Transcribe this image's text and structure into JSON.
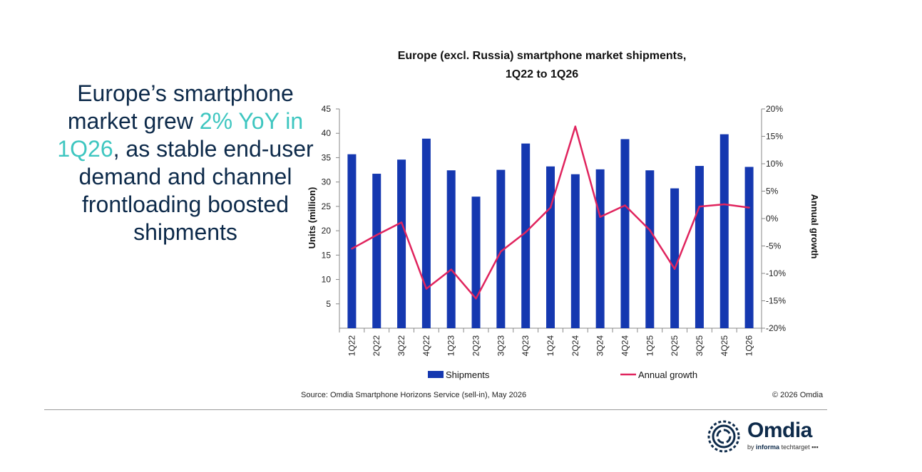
{
  "headline": {
    "part1": "Europe’s smartphone market grew ",
    "highlight": "2% YoY in 1Q26",
    "part2": ", as stable end-user demand and channel frontloading boosted shipments"
  },
  "chart_data": {
    "type": "bar",
    "title_line1": "Europe (excl. Russia) smartphone market shipments,",
    "title_line2": "1Q22 to 1Q26",
    "categories": [
      "1Q22",
      "2Q22",
      "3Q22",
      "4Q22",
      "1Q23",
      "2Q23",
      "3Q23",
      "4Q23",
      "1Q24",
      "2Q24",
      "3Q24",
      "4Q24",
      "1Q25",
      "2Q25",
      "3Q25",
      "4Q25",
      "1Q26"
    ],
    "series": [
      {
        "name": "Shipments",
        "type": "bar",
        "axis": "left",
        "color": "#1538b0",
        "values": [
          35.7,
          31.7,
          34.6,
          38.9,
          32.4,
          27.0,
          32.5,
          37.9,
          33.2,
          31.6,
          32.6,
          38.8,
          32.4,
          28.7,
          33.3,
          39.8,
          33.1
        ]
      },
      {
        "name": "Annual growth",
        "type": "line",
        "axis": "right",
        "color": "#e0245e",
        "values": [
          -5.5,
          -3.0,
          -0.7,
          -12.8,
          -9.3,
          -14.6,
          -6.0,
          -2.5,
          2.0,
          16.8,
          0.3,
          2.4,
          -2.1,
          -9.2,
          2.2,
          2.6,
          2.0
        ]
      }
    ],
    "ylabel": "Units (million)",
    "y2label": "Annual growth",
    "ylim": [
      0,
      45
    ],
    "yticks": [
      "5",
      "10",
      "15",
      "20",
      "25",
      "30",
      "35",
      "40",
      "45"
    ],
    "y2lim": [
      -20,
      20
    ],
    "y2ticks": [
      "-20%",
      "-15%",
      "-10%",
      "-5%",
      "0%",
      "5%",
      "10%",
      "15%",
      "20%"
    ],
    "legend": "bottom"
  },
  "footer": {
    "source": "Source: Omdia Smartphone Horizons Service (sell-in), May 2026",
    "copyright": "© 2026 Omdia"
  },
  "logo": {
    "name": "Omdia",
    "by": "by",
    "informa": "informa",
    "techtarget": "techtarget"
  }
}
